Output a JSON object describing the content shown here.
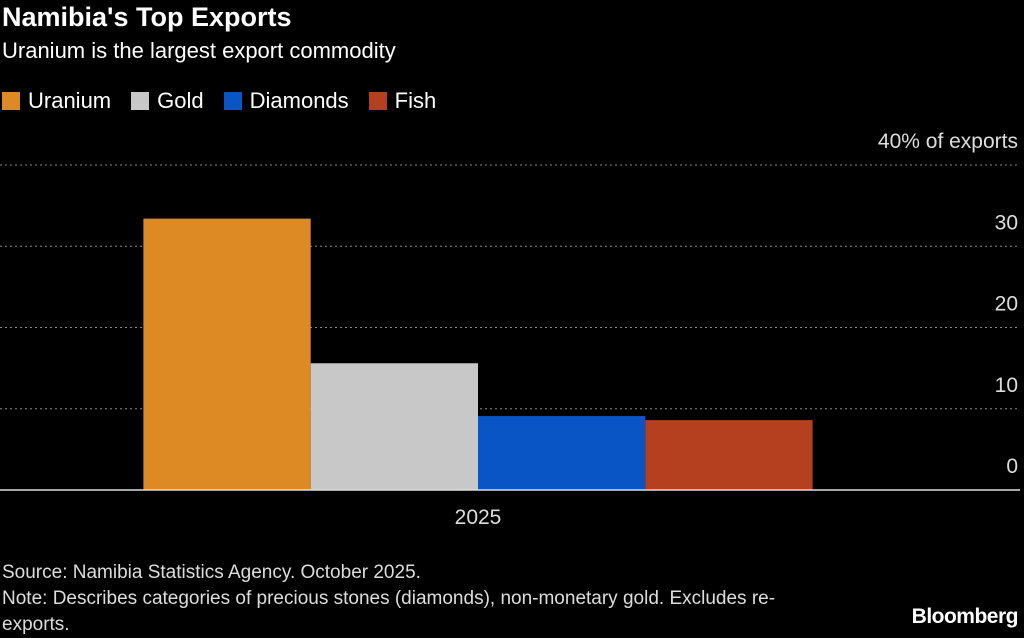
{
  "chart_data": {
    "type": "bar",
    "title": "Namibia's Top Exports",
    "subtitle": "Uranium is the largest export commodity",
    "categories": [
      "2025"
    ],
    "series": [
      {
        "name": "Uranium",
        "color": "#dd8a25",
        "values": [
          33.4
        ]
      },
      {
        "name": "Gold",
        "color": "#c8c8c8",
        "values": [
          15.6
        ]
      },
      {
        "name": "Diamonds",
        "color": "#0a55c6",
        "values": [
          9.1
        ]
      },
      {
        "name": "Fish",
        "color": "#b5401f",
        "values": [
          8.6
        ]
      }
    ],
    "ylim": [
      0,
      40
    ],
    "yticks": [
      0,
      10,
      20,
      30,
      {
        "value": 40,
        "label": "40% of exports"
      }
    ],
    "grid": true,
    "source": "Source: Namibia Statistics Agency. October 2025.",
    "note": "Note: Describes categories of precious stones (diamonds), non-monetary gold. Excludes re-exports.",
    "brand": "Bloomberg"
  }
}
